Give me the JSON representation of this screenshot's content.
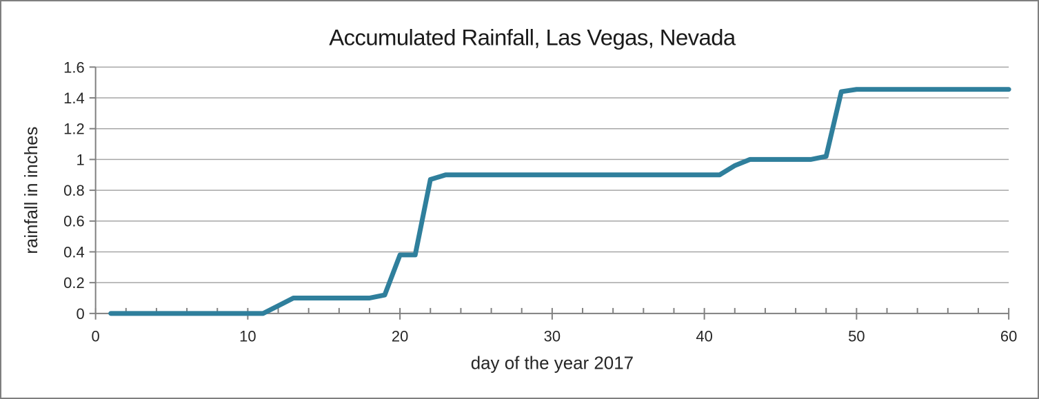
{
  "frame": {
    "border_color": "#7f7f7f",
    "background_color": "#ffffff"
  },
  "chart_data": {
    "type": "line",
    "title": "Accumulated Rainfall, Las Vegas, Nevada",
    "xlabel": "day of the year 2017",
    "ylabel": "rainfall in inches",
    "xlim": [
      0,
      60
    ],
    "ylim": [
      0,
      1.6
    ],
    "x_major_ticks": [
      0,
      10,
      20,
      30,
      40,
      50,
      60
    ],
    "x_minor_tick_step": 2,
    "y_ticks": [
      0,
      0.2,
      0.4,
      0.6,
      0.8,
      1,
      1.2,
      1.4,
      1.6
    ],
    "y_tick_labels": [
      "0",
      "0.2",
      "0.4",
      "0.6",
      "0.8",
      "1",
      "1.2",
      "1.4",
      "1.6"
    ],
    "grid": "horizontal",
    "legend": "none",
    "line_color": "#2f7f9c",
    "line_width": 7,
    "grid_color": "#a6a6a6",
    "axis_color": "#808080",
    "text_color": "#262626",
    "series": [
      {
        "name": "accumulated rainfall",
        "x": [
          1,
          2,
          3,
          4,
          5,
          6,
          7,
          8,
          9,
          10,
          11,
          12,
          13,
          14,
          15,
          16,
          17,
          18,
          19,
          20,
          21,
          22,
          23,
          24,
          25,
          26,
          27,
          28,
          29,
          30,
          31,
          32,
          33,
          34,
          35,
          36,
          37,
          38,
          39,
          40,
          41,
          42,
          43,
          44,
          45,
          46,
          47,
          48,
          49,
          50,
          51,
          52,
          53,
          54,
          55,
          56,
          57,
          58,
          59,
          60
        ],
        "y": [
          0,
          0,
          0,
          0,
          0,
          0,
          0,
          0,
          0,
          0,
          0,
          0.05,
          0.1,
          0.1,
          0.1,
          0.1,
          0.1,
          0.1,
          0.12,
          0.38,
          0.38,
          0.87,
          0.9,
          0.9,
          0.9,
          0.9,
          0.9,
          0.9,
          0.9,
          0.9,
          0.9,
          0.9,
          0.9,
          0.9,
          0.9,
          0.9,
          0.9,
          0.9,
          0.9,
          0.9,
          0.9,
          0.96,
          1.0,
          1.0,
          1.0,
          1.0,
          1.0,
          1.02,
          1.44,
          1.455,
          1.455,
          1.455,
          1.455,
          1.455,
          1.455,
          1.455,
          1.455,
          1.455,
          1.455,
          1.455
        ]
      }
    ]
  }
}
